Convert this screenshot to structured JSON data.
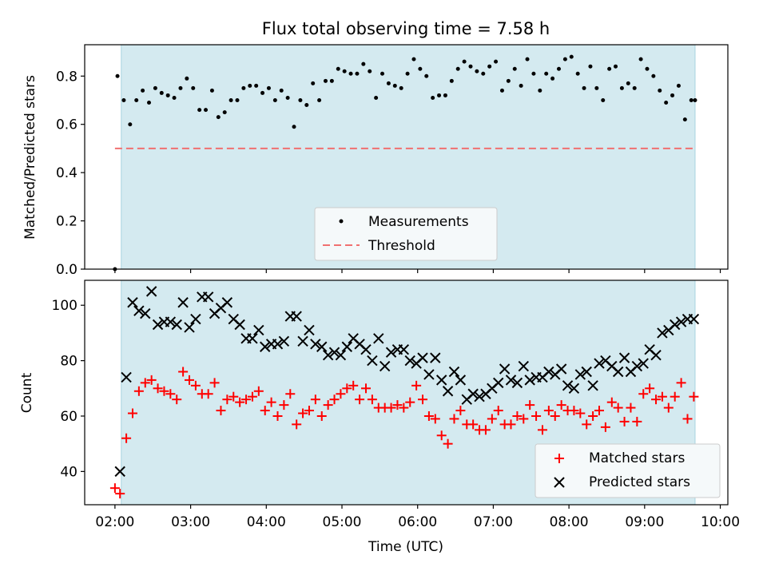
{
  "figure": {
    "title": "Flux total observing time = 7.58 h",
    "xlabel": "Time (UTC)",
    "xlim": [
      "02:00",
      "10:00"
    ],
    "x_ticks": [
      "02:00",
      "03:00",
      "04:00",
      "05:00",
      "06:00",
      "07:00",
      "08:00",
      "09:00",
      "10:00"
    ],
    "shaded_span": [
      "02:05",
      "09:40"
    ],
    "colors": {
      "span": "#d4eaf0",
      "threshold": "#f07070",
      "matched": "#ff0000",
      "predicted": "#000000",
      "measurements": "#000000"
    }
  },
  "chart_data": [
    {
      "type": "scatter",
      "ylabel": "Matched/Predicted stars",
      "ylim": [
        0,
        0.93
      ],
      "y_ticks": [
        "0.0",
        "0.2",
        "0.4",
        "0.6",
        "0.8"
      ],
      "legend": {
        "location": "lower center",
        "entries": [
          "Measurements",
          "Threshold"
        ]
      },
      "threshold": 0.5,
      "series": [
        {
          "name": "Measurements",
          "marker": "dot",
          "x": [
            "02:00",
            "02:02",
            "02:07",
            "02:12",
            "02:17",
            "02:22",
            "02:27",
            "02:32",
            "02:37",
            "02:42",
            "02:47",
            "02:52",
            "02:57",
            "03:02",
            "03:07",
            "03:12",
            "03:17",
            "03:22",
            "03:27",
            "03:32",
            "03:37",
            "03:42",
            "03:47",
            "03:52",
            "03:57",
            "04:02",
            "04:07",
            "04:12",
            "04:17",
            "04:22",
            "04:27",
            "04:32",
            "04:37",
            "04:42",
            "04:47",
            "04:52",
            "04:57",
            "05:02",
            "05:07",
            "05:12",
            "05:17",
            "05:22",
            "05:27",
            "05:32",
            "05:37",
            "05:42",
            "05:47",
            "05:52",
            "05:57",
            "06:02",
            "06:07",
            "06:12",
            "06:17",
            "06:22",
            "06:27",
            "06:32",
            "06:37",
            "06:42",
            "06:47",
            "06:52",
            "06:57",
            "07:02",
            "07:07",
            "07:12",
            "07:17",
            "07:22",
            "07:27",
            "07:32",
            "07:37",
            "07:42",
            "07:47",
            "07:52",
            "07:57",
            "08:02",
            "08:07",
            "08:12",
            "08:17",
            "08:22",
            "08:27",
            "08:32",
            "08:37",
            "08:42",
            "08:47",
            "08:52",
            "08:57",
            "09:02",
            "09:07",
            "09:12",
            "09:17",
            "09:22",
            "09:27",
            "09:32",
            "09:37",
            "09:40"
          ],
          "y": [
            0.0,
            0.8,
            0.7,
            0.6,
            0.7,
            0.74,
            0.69,
            0.75,
            0.73,
            0.72,
            0.71,
            0.75,
            0.79,
            0.75,
            0.66,
            0.66,
            0.74,
            0.63,
            0.65,
            0.7,
            0.7,
            0.75,
            0.76,
            0.76,
            0.73,
            0.75,
            0.7,
            0.74,
            0.71,
            0.59,
            0.7,
            0.68,
            0.77,
            0.7,
            0.78,
            0.78,
            0.83,
            0.82,
            0.81,
            0.81,
            0.85,
            0.82,
            0.71,
            0.81,
            0.77,
            0.76,
            0.75,
            0.81,
            0.87,
            0.83,
            0.8,
            0.71,
            0.72,
            0.72,
            0.78,
            0.83,
            0.86,
            0.84,
            0.82,
            0.81,
            0.84,
            0.86,
            0.74,
            0.78,
            0.83,
            0.76,
            0.87,
            0.81,
            0.74,
            0.81,
            0.79,
            0.83,
            0.87,
            0.88,
            0.81,
            0.75,
            0.84,
            0.75,
            0.7,
            0.83,
            0.84,
            0.75,
            0.77,
            0.75,
            0.87,
            0.83,
            0.8,
            0.74,
            0.69,
            0.72,
            0.76,
            0.62,
            0.7,
            0.7
          ]
        }
      ]
    },
    {
      "type": "scatter",
      "ylabel": "Count",
      "ylim": [
        28,
        109
      ],
      "y_ticks": [
        "40",
        "60",
        "80",
        "100"
      ],
      "legend": {
        "location": "lower right",
        "entries": [
          "Matched stars",
          "Predicted stars"
        ]
      },
      "series": [
        {
          "name": "Matched stars",
          "marker": "plus",
          "x": [
            "02:00",
            "02:04",
            "02:09",
            "02:14",
            "02:19",
            "02:24",
            "02:29",
            "02:34",
            "02:39",
            "02:44",
            "02:49",
            "02:54",
            "02:59",
            "03:04",
            "03:09",
            "03:14",
            "03:19",
            "03:24",
            "03:29",
            "03:34",
            "03:39",
            "03:44",
            "03:49",
            "03:54",
            "03:59",
            "04:04",
            "04:09",
            "04:14",
            "04:19",
            "04:24",
            "04:29",
            "04:34",
            "04:39",
            "04:44",
            "04:49",
            "04:54",
            "04:59",
            "05:04",
            "05:09",
            "05:14",
            "05:19",
            "05:24",
            "05:29",
            "05:34",
            "05:39",
            "05:44",
            "05:49",
            "05:54",
            "05:59",
            "06:04",
            "06:09",
            "06:14",
            "06:19",
            "06:24",
            "06:29",
            "06:34",
            "06:39",
            "06:44",
            "06:49",
            "06:54",
            "06:59",
            "07:04",
            "07:09",
            "07:14",
            "07:19",
            "07:24",
            "07:29",
            "07:34",
            "07:39",
            "07:44",
            "07:49",
            "07:54",
            "07:59",
            "08:04",
            "08:09",
            "08:14",
            "08:19",
            "08:24",
            "08:29",
            "08:34",
            "08:39",
            "08:44",
            "08:49",
            "08:54",
            "08:59",
            "09:04",
            "09:09",
            "09:14",
            "09:19",
            "09:24",
            "09:29",
            "09:34",
            "09:39"
          ],
          "y": [
            34,
            32,
            52,
            61,
            69,
            72,
            73,
            70,
            69,
            68,
            66,
            76,
            73,
            71,
            68,
            68,
            72,
            62,
            66,
            67,
            65,
            66,
            67,
            69,
            62,
            65,
            60,
            64,
            68,
            57,
            61,
            62,
            66,
            60,
            64,
            66,
            68,
            70,
            71,
            66,
            70,
            66,
            63,
            63,
            63,
            64,
            63,
            65,
            71,
            66,
            60,
            59,
            53,
            50,
            59,
            62,
            57,
            57,
            55,
            55,
            59,
            62,
            57,
            57,
            60,
            59,
            64,
            60,
            55,
            62,
            60,
            64,
            62,
            62,
            61,
            57,
            60,
            62,
            56,
            65,
            63,
            58,
            63,
            58,
            68,
            70,
            66,
            67,
            63,
            67,
            72,
            59,
            67
          ]
        },
        {
          "name": "Predicted stars",
          "marker": "x",
          "x": [
            "02:04",
            "02:09",
            "02:14",
            "02:19",
            "02:24",
            "02:29",
            "02:34",
            "02:39",
            "02:44",
            "02:49",
            "02:54",
            "02:59",
            "03:04",
            "03:09",
            "03:14",
            "03:19",
            "03:24",
            "03:29",
            "03:34",
            "03:39",
            "03:44",
            "03:49",
            "03:54",
            "03:59",
            "04:04",
            "04:09",
            "04:14",
            "04:19",
            "04:24",
            "04:29",
            "04:34",
            "04:39",
            "04:44",
            "04:49",
            "04:54",
            "04:59",
            "05:04",
            "05:09",
            "05:14",
            "05:19",
            "05:24",
            "05:29",
            "05:34",
            "05:39",
            "05:44",
            "05:49",
            "05:54",
            "05:59",
            "06:04",
            "06:09",
            "06:14",
            "06:19",
            "06:24",
            "06:29",
            "06:34",
            "06:39",
            "06:44",
            "06:49",
            "06:54",
            "06:59",
            "07:04",
            "07:09",
            "07:14",
            "07:19",
            "07:24",
            "07:29",
            "07:34",
            "07:39",
            "07:44",
            "07:49",
            "07:54",
            "07:59",
            "08:04",
            "08:09",
            "08:14",
            "08:19",
            "08:24",
            "08:29",
            "08:34",
            "08:39",
            "08:44",
            "08:49",
            "08:54",
            "08:59",
            "09:04",
            "09:09",
            "09:14",
            "09:19",
            "09:24",
            "09:29",
            "09:34",
            "09:39"
          ],
          "y": [
            40,
            74,
            101,
            98,
            97,
            105,
            93,
            94,
            94,
            93,
            101,
            92,
            95,
            103,
            103,
            97,
            99,
            101,
            95,
            93,
            88,
            88,
            91,
            85,
            86,
            86,
            87,
            96,
            96,
            87,
            91,
            86,
            85,
            82,
            83,
            82,
            85,
            88,
            86,
            84,
            80,
            88,
            78,
            83,
            84,
            84,
            80,
            79,
            81,
            75,
            81,
            73,
            69,
            76,
            73,
            66,
            68,
            67,
            68,
            70,
            72,
            77,
            73,
            72,
            78,
            73,
            74,
            74,
            76,
            75,
            77,
            71,
            70,
            75,
            76,
            71,
            79,
            80,
            78,
            76,
            81,
            76,
            78,
            79,
            84,
            82,
            90,
            91,
            93,
            94,
            95,
            95
          ]
        }
      ]
    }
  ]
}
